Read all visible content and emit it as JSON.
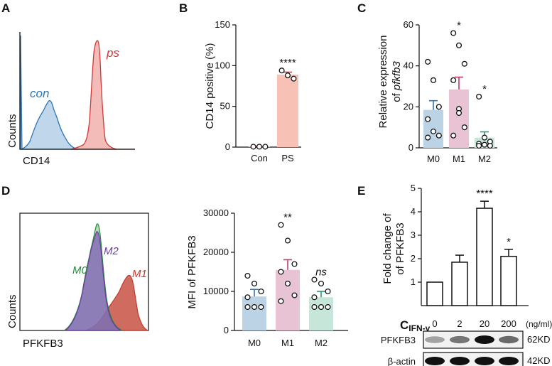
{
  "panel_labels": {
    "a": "A",
    "b": "B",
    "c": "C",
    "d": "D",
    "e": "E"
  },
  "colors": {
    "con_line": "#2e75b6",
    "con_fill": "#b9d2e8",
    "ps_line": "#d13838",
    "ps_fill": "#f2b5b0",
    "m0_bar": "#bcd3e6",
    "m0_err": "#2e75b6",
    "m1_bar": "#e8c3d3",
    "m1_err": "#c5376a",
    "m2_bar": "#c5e6d8",
    "m2_err": "#2e9a6c",
    "m0_hist": "#1f8a3a",
    "m2_hist": "#6a3fa0",
    "m1_hist": "#c0392b",
    "ps_bar": "#f7c1b5",
    "ps_err": "#d33b3b"
  },
  "chart_data": [
    {
      "id": "A",
      "type": "histogram",
      "title": "",
      "xlabel": "CD14",
      "ylabel": "Counts",
      "series": [
        {
          "name": "con",
          "description": "control, low CD14"
        },
        {
          "name": "ps",
          "description": "PS treated, high CD14"
        }
      ]
    },
    {
      "id": "B",
      "type": "bar",
      "categories": [
        "Con",
        "PS"
      ],
      "values": [
        0.5,
        89
      ],
      "errors": [
        0.3,
        3
      ],
      "points": [
        [
          0.5,
          0.5,
          0.5
        ],
        [
          94,
          88,
          84
        ]
      ],
      "ylabel": "CD14 positive (%)",
      "ylim": [
        0,
        150
      ],
      "yticks": [
        "0",
        "50",
        "100",
        "150"
      ],
      "significance": [
        "",
        "****"
      ]
    },
    {
      "id": "C",
      "type": "bar",
      "categories": [
        "M0",
        "M1",
        "M2"
      ],
      "values": [
        18.5,
        28.5,
        5
      ],
      "errors": [
        4.5,
        6,
        2.8
      ],
      "points": [
        [
          42,
          33,
          20,
          14,
          8,
          6,
          5
        ],
        [
          56,
          50,
          41,
          33,
          19,
          10,
          6,
          17
        ],
        [
          25,
          5,
          3,
          2,
          1.5,
          1,
          1
        ]
      ],
      "ylabel": "Relative expression",
      "ylabel2_prefix": "of ",
      "ylabel2_italic": "pfkfb3",
      "ylim": [
        0,
        60
      ],
      "yticks": [
        "0",
        "20",
        "40",
        "60"
      ],
      "significance": [
        "",
        "*",
        "*"
      ]
    },
    {
      "id": "D",
      "type": "histogram",
      "xlabel": "PFKFB3",
      "ylabel": "Counts",
      "series": [
        {
          "name": "M0"
        },
        {
          "name": "M2"
        },
        {
          "name": "M1"
        }
      ]
    },
    {
      "id": "D2",
      "type": "bar",
      "categories": [
        "M0",
        "M1",
        "M2"
      ],
      "values": [
        8700,
        15500,
        8500
      ],
      "errors": [
        1800,
        2600,
        1500
      ],
      "points": [
        [
          14000,
          12000,
          10000,
          8500,
          6000,
          6000,
          6000
        ],
        [
          27000,
          23000,
          17000,
          15000,
          12000,
          9000,
          7500
        ],
        [
          13000,
          12000,
          10000,
          8500,
          6000,
          6000,
          6000
        ]
      ],
      "ylabel": "MFI of PFKFB3",
      "ylim": [
        0,
        30000
      ],
      "yticks": [
        "0",
        "10000",
        "20000",
        "30000"
      ],
      "significance": [
        "",
        "**",
        "ns"
      ]
    },
    {
      "id": "E",
      "type": "bar",
      "categories": [
        "0",
        "2",
        "20",
        "200"
      ],
      "values": [
        1.0,
        1.85,
        4.15,
        2.1
      ],
      "errors": [
        0,
        0.3,
        0.3,
        0.3
      ],
      "ylabel": "Fold change of",
      "ylabel2": "of PFKFB3",
      "ylim": [
        0,
        5
      ],
      "yticks": [
        "1",
        "2",
        "3",
        "4",
        "5"
      ],
      "significance": [
        "",
        "",
        "****",
        "*"
      ],
      "x_prefix": "C",
      "x_prefix_sub": "IFN-γ",
      "x_unit": "(ng/ml)",
      "blots": [
        {
          "label": "PFKFB3",
          "size": "62KD",
          "intensities": [
            0.35,
            0.55,
            1.0,
            0.6
          ]
        },
        {
          "label": "β-actin",
          "size": "42KD",
          "intensities": [
            1.0,
            1.0,
            1.0,
            1.0
          ]
        }
      ]
    }
  ]
}
